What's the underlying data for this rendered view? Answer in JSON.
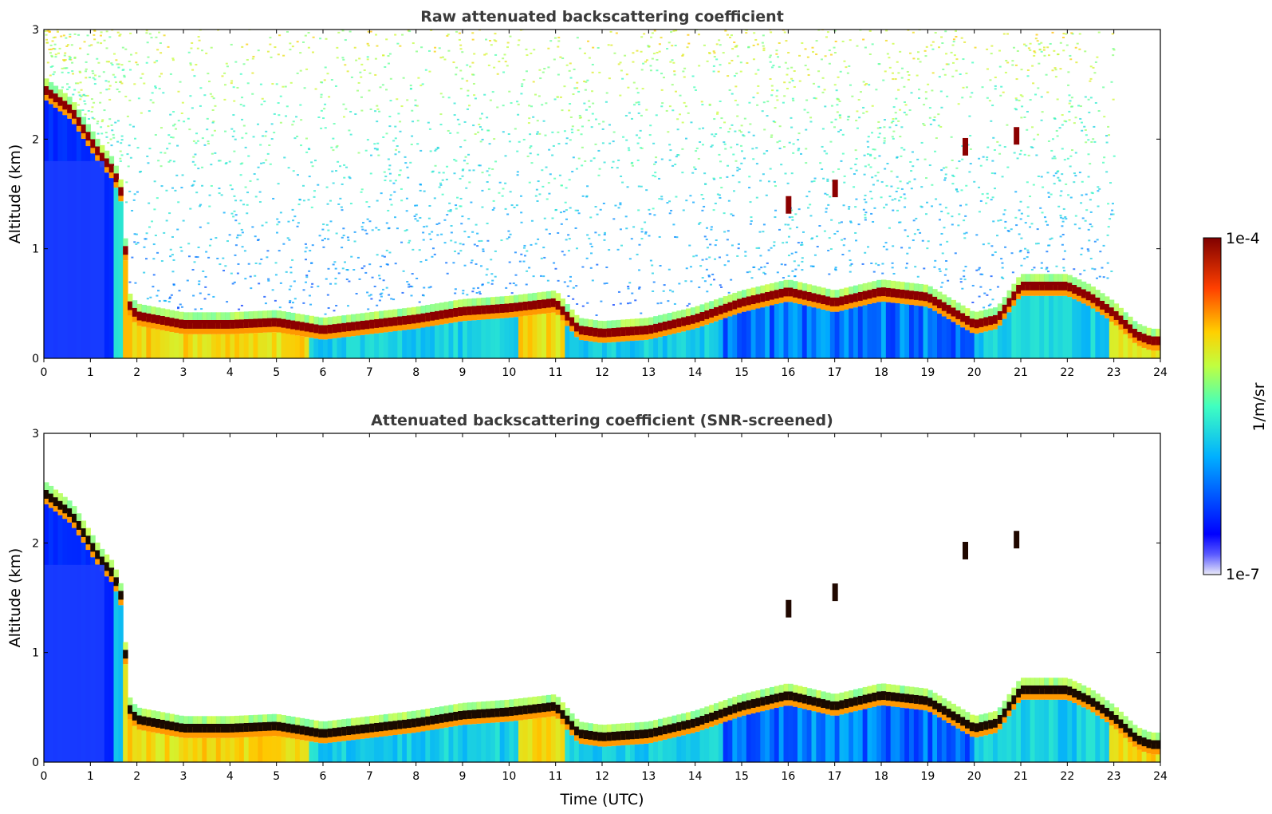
{
  "chart_data": [
    {
      "type": "heatmap",
      "title": "Raw attenuated backscattering coefficient",
      "xlabel": "",
      "ylabel": "Altitude (km)",
      "xlim": [
        0,
        24
      ],
      "ylim": [
        0,
        3
      ],
      "xticks": [
        "0",
        "1",
        "2",
        "3",
        "4",
        "5",
        "6",
        "7",
        "8",
        "9",
        "10",
        "11",
        "12",
        "13",
        "14",
        "15",
        "16",
        "17",
        "18",
        "19",
        "20",
        "21",
        "22",
        "23",
        "24"
      ],
      "yticks": [
        "0",
        "1",
        "2",
        "3"
      ],
      "screened": false
    },
    {
      "type": "heatmap",
      "title": "Attenuated backscattering coefficient (SNR-screened)",
      "xlabel": "Time (UTC)",
      "ylabel": "Altitude (km)",
      "xlim": [
        0,
        24
      ],
      "ylim": [
        0,
        3
      ],
      "xticks": [
        "0",
        "1",
        "2",
        "3",
        "4",
        "5",
        "6",
        "7",
        "8",
        "9",
        "10",
        "11",
        "12",
        "13",
        "14",
        "15",
        "16",
        "17",
        "18",
        "19",
        "20",
        "21",
        "22",
        "23",
        "24"
      ],
      "yticks": [
        "0",
        "1",
        "2",
        "3"
      ],
      "screened": true
    }
  ],
  "colorbar": {
    "label": "1/m/sr",
    "max_label": "1e-4",
    "min_label": "1e-7",
    "log_range": [
      -7,
      -4
    ],
    "colormap": "jet"
  },
  "boundary_layer_top_km": [
    [
      0,
      2.45
    ],
    [
      0.3,
      2.35
    ],
    [
      0.6,
      2.25
    ],
    [
      0.9,
      2.05
    ],
    [
      1.2,
      1.85
    ],
    [
      1.5,
      1.7
    ],
    [
      1.7,
      1.45
    ],
    [
      1.8,
      0.5
    ],
    [
      2,
      0.38
    ],
    [
      3,
      0.3
    ],
    [
      4,
      0.3
    ],
    [
      5,
      0.32
    ],
    [
      6,
      0.25
    ],
    [
      7,
      0.3
    ],
    [
      8,
      0.35
    ],
    [
      9,
      0.42
    ],
    [
      10,
      0.45
    ],
    [
      11,
      0.5
    ],
    [
      11.5,
      0.25
    ],
    [
      12,
      0.22
    ],
    [
      13,
      0.25
    ],
    [
      14,
      0.35
    ],
    [
      15,
      0.5
    ],
    [
      16,
      0.6
    ],
    [
      17,
      0.5
    ],
    [
      18,
      0.6
    ],
    [
      19,
      0.55
    ],
    [
      20,
      0.3
    ],
    [
      20.5,
      0.35
    ],
    [
      21,
      0.65
    ],
    [
      22,
      0.65
    ],
    [
      22.5,
      0.55
    ],
    [
      23,
      0.4
    ],
    [
      23.5,
      0.2
    ],
    [
      23.8,
      0.15
    ]
  ],
  "elevated_layers_km": [
    {
      "time": 16.0,
      "altitude": 1.4
    },
    {
      "time": 17.0,
      "altitude": 1.55
    },
    {
      "time": 19.8,
      "altitude": 1.93
    },
    {
      "time": 20.9,
      "altitude": 2.03
    }
  ]
}
